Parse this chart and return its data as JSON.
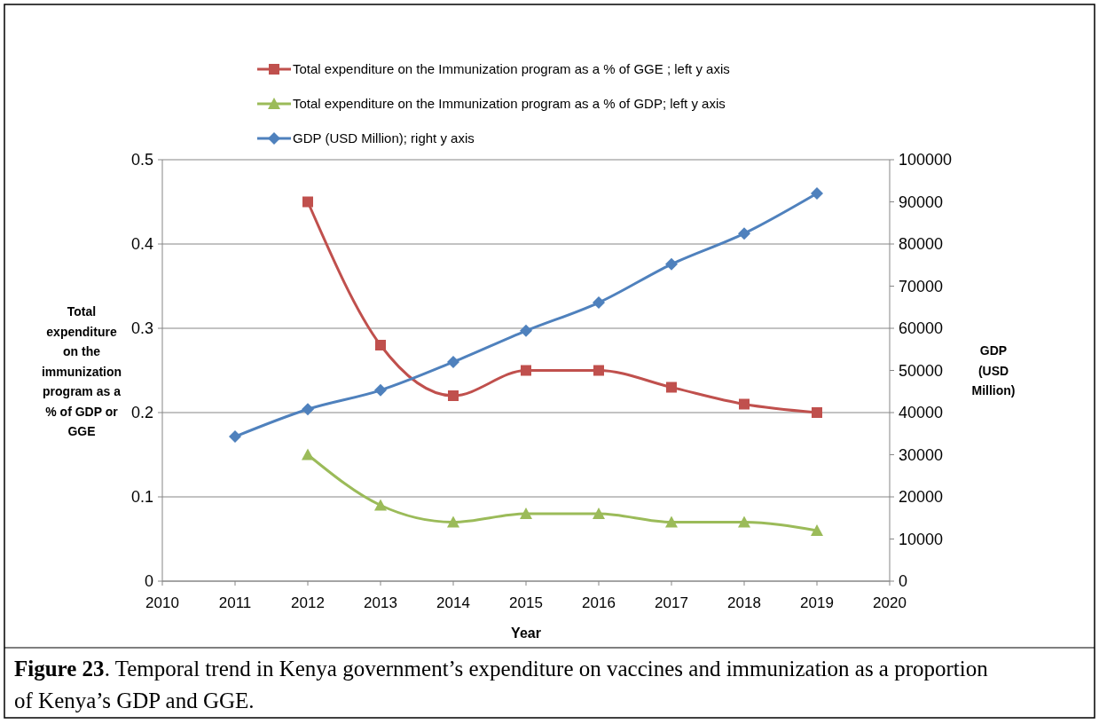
{
  "chart_data": {
    "type": "line",
    "xlabel": "Year",
    "ylabel": "Total expenditure on the immunization program as a % of GDP or GGE",
    "y2label": "GDP (USD Million)",
    "x": [
      2011,
      2012,
      2013,
      2014,
      2015,
      2016,
      2017,
      2018,
      2019
    ],
    "xlim": [
      2010,
      2020
    ],
    "xticks": [
      2010,
      2011,
      2012,
      2013,
      2014,
      2015,
      2016,
      2017,
      2018,
      2019,
      2020
    ],
    "ylim": [
      0,
      0.5
    ],
    "yticks": [
      0,
      0.1,
      0.2,
      0.3,
      0.4,
      0.5
    ],
    "y2lim": [
      0,
      100000
    ],
    "y2ticks": [
      0,
      10000,
      20000,
      30000,
      40000,
      50000,
      60000,
      70000,
      80000,
      90000,
      100000
    ],
    "grid": "y",
    "legend": "top",
    "series": [
      {
        "name": "Total expenditure on the Immunization program as a % of GGE ; left y axis",
        "color": "#c0504d",
        "marker": "square",
        "values": [
          null,
          0.45,
          0.28,
          0.22,
          0.25,
          0.25,
          0.23,
          0.21,
          0.2
        ]
      },
      {
        "name": "Total expenditure on the Immunization program as a % of GDP; left y axis",
        "color": "#9bbb59",
        "marker": "triangle",
        "values": [
          null,
          0.15,
          0.09,
          0.07,
          0.08,
          0.08,
          0.07,
          0.07,
          0.06
        ]
      },
      {
        "name": "GDP (USD Million); right y axis",
        "color": "#4f81bd",
        "marker": "diamond",
        "axis": "y2",
        "values": [
          34300,
          40800,
          45300,
          52000,
          59400,
          66100,
          75200,
          82500,
          92000
        ]
      }
    ],
    "annotations": [
      "Figure 23. Temporal trend in Kenya government’s expenditure on vaccines and immunization as a proportion of Kenya’s GDP and GGE."
    ]
  }
}
